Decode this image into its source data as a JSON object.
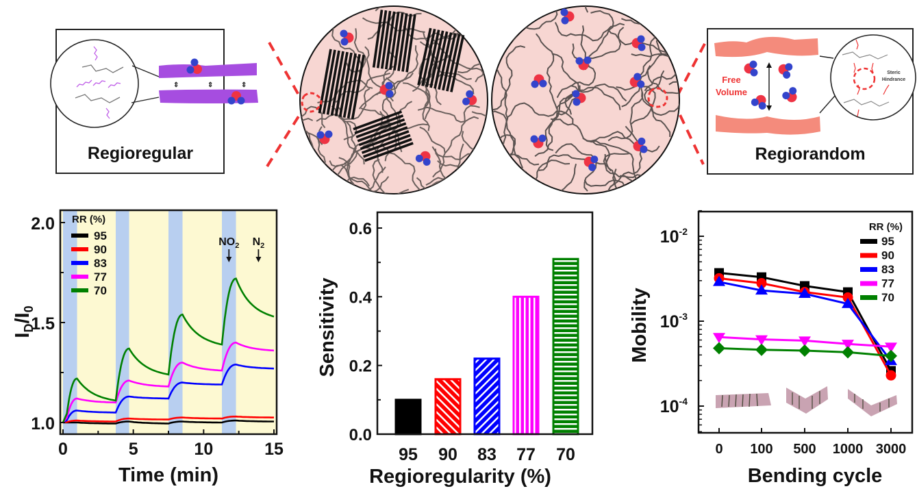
{
  "illustrations": {
    "left_panel_label": "Regioregular",
    "right_panel_label": "Regiorandom",
    "free_volume_label_1": "Free",
    "free_volume_label_2": "Volume",
    "steric_label_1": "Steric",
    "steric_label_2": "Hindrance"
  },
  "colors": {
    "rr95": "#000000",
    "rr90": "#ff0000",
    "rr83": "#0000ff",
    "rr77": "#ff00ff",
    "rr70": "#008000",
    "no2_band": "#b8cff0",
    "n2_band": "#fdf9d2",
    "p3ht_regular": "#a64de0",
    "p3ht_random": "#f48b7c",
    "film_bg": "#f7d6d2"
  },
  "chart_data": [
    {
      "type": "line",
      "title": "",
      "xlabel": "Time (min)",
      "ylabel": "I_D/I_0",
      "ylabel_main": "I",
      "ylabel_sub1": "D",
      "ylabel_mid": "/I",
      "ylabel_sub2": "0",
      "xlim": [
        0,
        15
      ],
      "ylim": [
        0.97,
        2.05
      ],
      "xticks": [
        0,
        5,
        10,
        15
      ],
      "xtick_labels": [
        "0",
        "5",
        "10",
        "15"
      ],
      "yticks": [
        1.0,
        1.5,
        2.0
      ],
      "ytick_labels": [
        "1.0",
        "1.5",
        "2.0"
      ],
      "legend_title": "RR (%)",
      "legend_position": "top-left",
      "no2_intervals": [
        [
          0,
          1.0
        ],
        [
          3.75,
          4.7
        ],
        [
          7.5,
          8.5
        ],
        [
          11.3,
          12.3
        ]
      ],
      "annotations": [
        {
          "text": "NO",
          "sub": "2",
          "x": 11.8
        },
        {
          "text": "N",
          "sub": "2",
          "x": 13.9
        }
      ],
      "pulses": [
        {
          "start": 0.2,
          "end": 1.0,
          "valley_end": 3.75
        },
        {
          "start": 3.75,
          "end": 4.7,
          "valley_end": 7.5
        },
        {
          "start": 7.5,
          "end": 8.5,
          "valley_end": 11.3
        },
        {
          "start": 11.3,
          "end": 12.3,
          "valley_end": 15.0
        }
      ],
      "series": [
        {
          "name": "95",
          "color_key": "rr95",
          "peaks": [
            1.0,
            1.005,
            1.005,
            1.01
          ],
          "valleys": [
            0.995,
            0.995,
            1.0,
            1.005
          ]
        },
        {
          "name": "90",
          "color_key": "rr90",
          "peaks": [
            1.01,
            1.02,
            1.025,
            1.03
          ],
          "valleys": [
            1.005,
            1.015,
            1.02,
            1.025
          ]
        },
        {
          "name": "83",
          "color_key": "rr83",
          "peaks": [
            1.06,
            1.13,
            1.2,
            1.29
          ],
          "valleys": [
            1.05,
            1.12,
            1.19,
            1.27
          ]
        },
        {
          "name": "77",
          "color_key": "rr77",
          "peaks": [
            1.12,
            1.21,
            1.3,
            1.4
          ],
          "valleys": [
            1.1,
            1.18,
            1.26,
            1.36
          ]
        },
        {
          "name": "70",
          "color_key": "rr70",
          "peaks": [
            1.22,
            1.37,
            1.54,
            1.72
          ],
          "valleys": [
            1.11,
            1.24,
            1.39,
            1.53
          ]
        }
      ]
    },
    {
      "type": "bar",
      "title": "",
      "xlabel": "Regioregularity (%)",
      "ylabel": "Sensitivity",
      "categories": [
        "95",
        "90",
        "83",
        "77",
        "70"
      ],
      "values": [
        0.1,
        0.16,
        0.22,
        0.4,
        0.51
      ],
      "patterns": [
        "solid",
        "diag-right",
        "diag-left",
        "vertical",
        "horizontal"
      ],
      "color_keys": [
        "rr95",
        "rr90",
        "rr83",
        "rr77",
        "rr70"
      ],
      "ylim": [
        0,
        0.6
      ],
      "yticks": [
        0.0,
        0.2,
        0.4,
        0.6
      ],
      "ytick_labels": [
        "0.0",
        "0.2",
        "0.4",
        "0.6"
      ]
    },
    {
      "type": "line",
      "scale": "log",
      "title": "",
      "xlabel": "Bending cycle",
      "ylabel": "Mobility",
      "categories": [
        "0",
        "100",
        "500",
        "1000",
        "3000"
      ],
      "ylim": [
        5e-05,
        0.02
      ],
      "yticks_exp": [
        -4,
        -3,
        -2
      ],
      "ytick_base": "10",
      "legend_title": "RR (%)",
      "legend_position": "top-right",
      "series": [
        {
          "name": "95",
          "color_key": "rr95",
          "marker": "square",
          "values": [
            0.0037,
            0.0033,
            0.0026,
            0.0022,
            0.00026
          ]
        },
        {
          "name": "90",
          "color_key": "rr90",
          "marker": "circle",
          "values": [
            0.0032,
            0.0028,
            0.0022,
            0.0019,
            0.00023
          ]
        },
        {
          "name": "83",
          "color_key": "rr83",
          "marker": "triangle-up",
          "values": [
            0.0029,
            0.0023,
            0.0021,
            0.0016,
            0.00034
          ]
        },
        {
          "name": "77",
          "color_key": "rr77",
          "marker": "triangle-down",
          "values": [
            0.00065,
            0.00061,
            0.00059,
            0.00054,
            0.0005
          ]
        },
        {
          "name": "70",
          "color_key": "rr70",
          "marker": "diamond",
          "values": [
            0.00048,
            0.00046,
            0.00045,
            0.00043,
            0.00039
          ]
        }
      ]
    }
  ]
}
